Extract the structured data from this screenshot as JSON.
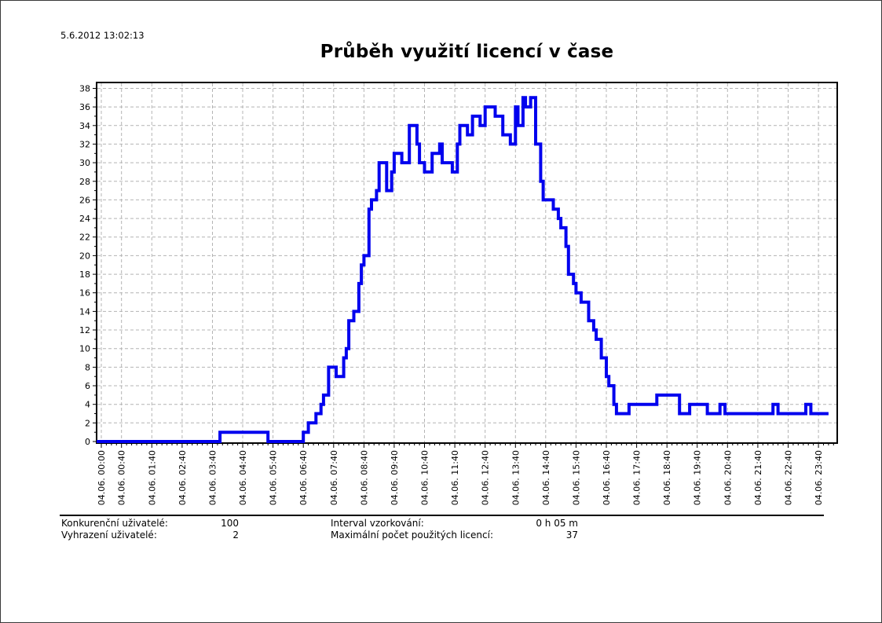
{
  "header": {
    "timestamp": "5.6.2012 13:02:13",
    "title": "Průběh využití licencí v čase"
  },
  "chart_data": {
    "type": "line",
    "step": true,
    "title": "Průběh využití licencí v čase",
    "x_axis": {
      "tick_minutes": [
        0,
        40,
        100,
        160,
        220,
        280,
        340,
        400,
        460,
        520,
        580,
        640,
        700,
        760,
        820,
        880,
        940,
        1000,
        1060,
        1120,
        1180,
        1240,
        1300,
        1360,
        1420
      ],
      "tick_labels": [
        "04.06. 00:00",
        "04.06. 00:40",
        "04.06. 01:40",
        "04.06. 02:40",
        "04.06. 03:40",
        "04.06. 04:40",
        "04.06. 05:40",
        "04.06. 06:40",
        "04.06. 07:40",
        "04.06. 08:40",
        "04.06. 09:40",
        "04.06. 10:40",
        "04.06. 11:40",
        "04.06. 12:40",
        "04.06. 13:40",
        "04.06. 14:40",
        "04.06. 15:40",
        "04.06. 16:40",
        "04.06. 17:40",
        "04.06. 18:40",
        "04.06. 19:40",
        "04.06. 20:40",
        "04.06. 21:40",
        "04.06. 22:40",
        "04.06. 23:40"
      ],
      "range_minutes": [
        0,
        1455
      ],
      "minor_tick_every_minutes": 10
    },
    "y_axis": {
      "min": 0,
      "max": 38,
      "tick_step": 2,
      "ticks": [
        0,
        2,
        4,
        6,
        8,
        10,
        12,
        14,
        16,
        18,
        20,
        22,
        24,
        26,
        28,
        30,
        32,
        34,
        36,
        38
      ]
    },
    "grid": true,
    "max_value": 37,
    "end_minute": 1440,
    "series": [
      {
        "color": "#0000ee",
        "breakpoints": [
          [
            0,
            0
          ],
          [
            235,
            1
          ],
          [
            330,
            0
          ],
          [
            400,
            1
          ],
          [
            410,
            2
          ],
          [
            425,
            3
          ],
          [
            435,
            4
          ],
          [
            440,
            5
          ],
          [
            450,
            8
          ],
          [
            465,
            7
          ],
          [
            480,
            9
          ],
          [
            485,
            10
          ],
          [
            490,
            13
          ],
          [
            500,
            14
          ],
          [
            510,
            17
          ],
          [
            515,
            19
          ],
          [
            520,
            20
          ],
          [
            530,
            25
          ],
          [
            535,
            26
          ],
          [
            545,
            27
          ],
          [
            550,
            30
          ],
          [
            565,
            27
          ],
          [
            575,
            29
          ],
          [
            580,
            31
          ],
          [
            595,
            30
          ],
          [
            610,
            34
          ],
          [
            625,
            32
          ],
          [
            630,
            30
          ],
          [
            640,
            29
          ],
          [
            655,
            31
          ],
          [
            670,
            32
          ],
          [
            675,
            30
          ],
          [
            695,
            29
          ],
          [
            705,
            32
          ],
          [
            710,
            34
          ],
          [
            725,
            33
          ],
          [
            735,
            35
          ],
          [
            750,
            34
          ],
          [
            760,
            36
          ],
          [
            780,
            35
          ],
          [
            795,
            33
          ],
          [
            810,
            32
          ],
          [
            820,
            36
          ],
          [
            825,
            34
          ],
          [
            835,
            37
          ],
          [
            840,
            36
          ],
          [
            850,
            37
          ],
          [
            860,
            32
          ],
          [
            870,
            28
          ],
          [
            875,
            26
          ],
          [
            895,
            25
          ],
          [
            905,
            24
          ],
          [
            910,
            23
          ],
          [
            920,
            21
          ],
          [
            925,
            18
          ],
          [
            935,
            17
          ],
          [
            940,
            16
          ],
          [
            950,
            15
          ],
          [
            965,
            13
          ],
          [
            975,
            12
          ],
          [
            980,
            11
          ],
          [
            990,
            9
          ],
          [
            1000,
            7
          ],
          [
            1005,
            6
          ],
          [
            1015,
            4
          ],
          [
            1020,
            3
          ],
          [
            1045,
            4
          ],
          [
            1100,
            5
          ],
          [
            1145,
            3
          ],
          [
            1165,
            4
          ],
          [
            1200,
            3
          ],
          [
            1225,
            4
          ],
          [
            1235,
            3
          ],
          [
            1330,
            4
          ],
          [
            1340,
            3
          ],
          [
            1395,
            4
          ],
          [
            1405,
            3
          ],
          [
            1440,
            3
          ]
        ]
      }
    ]
  },
  "footer": {
    "items": [
      {
        "label": "Konkurenční uživatelé:",
        "value": "100"
      },
      {
        "label": "Vyhrazení uživatelé:",
        "value": "2"
      },
      {
        "label": "Interval vzorkování:",
        "value": "0 h 05 m"
      },
      {
        "label": "Maximální počet použitých licencí:",
        "value": "37"
      }
    ]
  },
  "colors": {
    "line": "#0000ee",
    "grid": "#b4b4b4",
    "axis": "#000000"
  }
}
